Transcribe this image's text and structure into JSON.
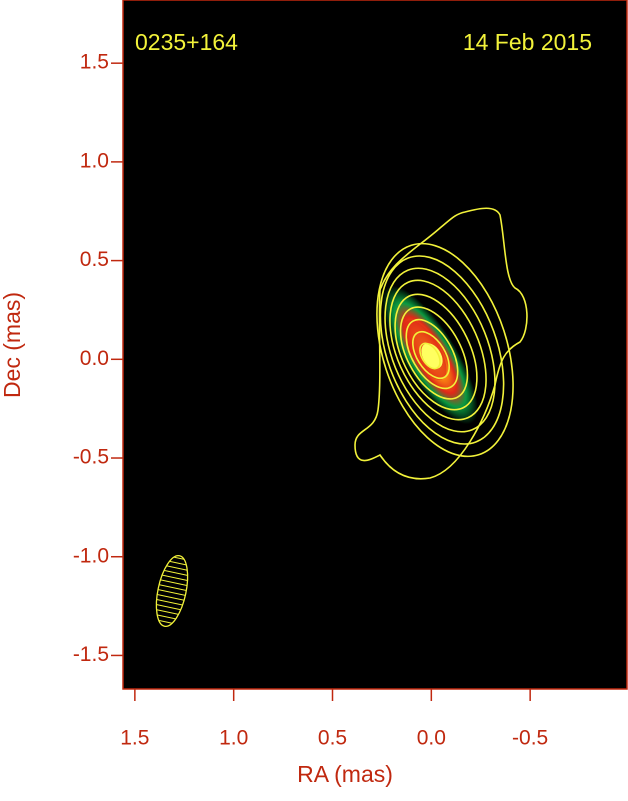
{
  "chart_data": {
    "type": "contour",
    "source_label": "0235+164",
    "date_label": "14 Feb 2015",
    "x_label": "RA (mas)",
    "y_label": "Dec (mas)",
    "xlim": [
      1.56,
      -0.99
    ],
    "ylim": [
      -1.67,
      1.82
    ],
    "xticks": [
      1.5,
      {
        "value": 1.0,
        "label": "1.0"
      },
      0.5,
      {
        "value": 0.0,
        "label": "0.0"
      },
      -0.5
    ],
    "yticks": [
      1.5,
      {
        "value": 1.0,
        "label": "1.0"
      },
      0.5,
      {
        "value": 0.0,
        "label": "0.0"
      },
      -0.5,
      {
        "value": -1.0,
        "label": "-1.0"
      },
      -1.5
    ],
    "axis_color": "#c0280f",
    "label_color": "#f2f23a"
  }
}
